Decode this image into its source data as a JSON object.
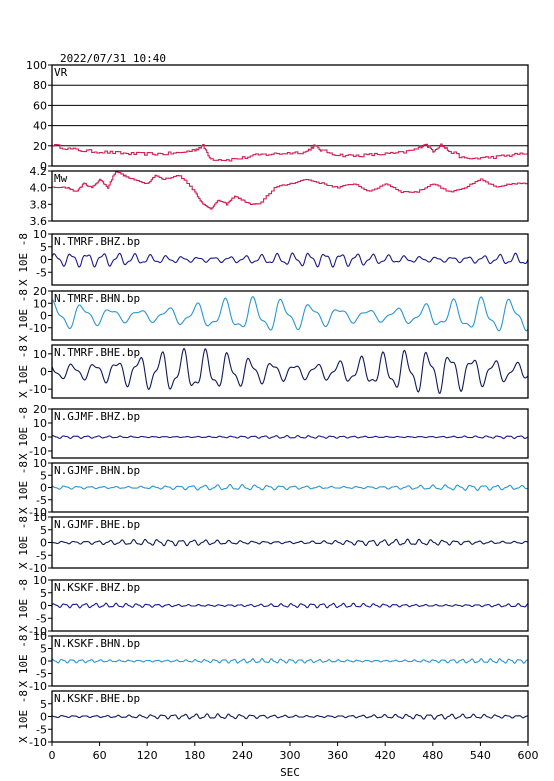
{
  "header": {
    "timestamp": "2022/07/31  10:40"
  },
  "x_axis": {
    "label": "SEC",
    "range": [
      0,
      600
    ],
    "ticks": [
      0,
      60,
      120,
      180,
      240,
      300,
      360,
      420,
      480,
      540,
      600
    ],
    "tick_labels": [
      "0",
      "60",
      "120",
      "180",
      "240",
      "300",
      "360",
      "420",
      "480",
      "540",
      "600"
    ]
  },
  "unit_label": "X 10E -8",
  "colors": {
    "vr": "#d21e50",
    "mw": "#d21e50",
    "bhz": "#1a1a8c",
    "bhn": "#2a96d2",
    "bhe": "#0f1a5a"
  },
  "chart_data": [
    {
      "type": "line",
      "name": "VR",
      "title": "VR",
      "ylim": [
        0,
        100
      ],
      "yticks": [
        0,
        20,
        40,
        60,
        80,
        100
      ],
      "yticklabels": [
        "0",
        "20",
        "40",
        "60",
        "80",
        "100"
      ],
      "grid": true,
      "x": [
        0,
        20,
        40,
        60,
        80,
        100,
        120,
        140,
        160,
        180,
        190,
        200,
        220,
        240,
        260,
        280,
        300,
        320,
        330,
        340,
        360,
        380,
        400,
        420,
        440,
        460,
        470,
        480,
        490,
        500,
        520,
        540,
        560,
        580,
        600
      ],
      "y": [
        21,
        17,
        15,
        14,
        13,
        12,
        12,
        12,
        13,
        16,
        20,
        7,
        6,
        8,
        11,
        12,
        13,
        14,
        20,
        15,
        11,
        10,
        11,
        12,
        13,
        17,
        22,
        15,
        21,
        15,
        7,
        8,
        9,
        11,
        13
      ],
      "color": "#d21e50"
    },
    {
      "type": "line",
      "name": "Mw",
      "title": "Mw",
      "ylim": [
        3.6,
        4.2
      ],
      "yticks": [
        3.6,
        3.8,
        4.0,
        4.2
      ],
      "yticklabels": [
        "3.6",
        "3.8",
        "4.0",
        "4.2"
      ],
      "x": [
        0,
        20,
        30,
        40,
        50,
        60,
        70,
        80,
        90,
        100,
        120,
        130,
        140,
        160,
        180,
        190,
        200,
        210,
        220,
        230,
        240,
        250,
        260,
        280,
        300,
        320,
        340,
        360,
        380,
        400,
        420,
        440,
        460,
        480,
        500,
        520,
        540,
        560,
        580,
        600
      ],
      "y": [
        4.0,
        4.0,
        3.95,
        4.05,
        4.0,
        4.1,
        4.0,
        4.2,
        4.15,
        4.1,
        4.05,
        4.15,
        4.1,
        4.15,
        3.95,
        3.8,
        3.75,
        3.85,
        3.8,
        3.9,
        3.85,
        3.8,
        3.8,
        4.0,
        4.05,
        4.1,
        4.05,
        4.0,
        4.05,
        3.95,
        4.05,
        3.95,
        3.95,
        4.05,
        3.95,
        4.0,
        4.1,
        4.0,
        4.05,
        4.05
      ],
      "color": "#d21e50"
    },
    {
      "type": "line",
      "name": "N.TMRF.BHZ.bp",
      "title": "N.TMRF.BHZ.bp",
      "ylim": [
        -10,
        10
      ],
      "yticks": [
        -5,
        0,
        5,
        10
      ],
      "yticklabels": [
        "-5",
        "0",
        "5",
        "10"
      ],
      "amplitude": 2.5,
      "period": 20,
      "phase": 0.3,
      "color": "#1a1a8c"
    },
    {
      "type": "line",
      "name": "N.TMRF.BHN.bp",
      "title": "N.TMRF.BHN.bp",
      "ylim": [
        -20,
        20
      ],
      "yticks": [
        -10,
        0,
        10,
        20
      ],
      "yticklabels": [
        "-10",
        "0",
        "10",
        "20"
      ],
      "amplitude": 13,
      "period": 36,
      "phase": 1.2,
      "color": "#2a96d2"
    },
    {
      "type": "line",
      "name": "N.TMRF.BHE.bp",
      "title": "N.TMRF.BHE.bp",
      "ylim": [
        -15,
        15
      ],
      "yticks": [
        -10,
        0,
        10
      ],
      "yticklabels": [
        "-10",
        "0",
        "10"
      ],
      "amplitude": 11,
      "period": 28,
      "phase": 2.1,
      "color": "#0f1a5a"
    },
    {
      "type": "line",
      "name": "N.GJMF.BHZ.bp",
      "title": "N.GJMF.BHZ.bp",
      "ylim": [
        -15,
        20
      ],
      "yticks": [
        -10,
        0,
        10,
        20
      ],
      "yticklabels": [
        "-10",
        "0",
        "10",
        "20"
      ],
      "amplitude": 0.9,
      "period": 14,
      "phase": 0.7,
      "color": "#1a1a8c"
    },
    {
      "type": "line",
      "name": "N.GJMF.BHN.bp",
      "title": "N.GJMF.BHN.bp",
      "ylim": [
        -10,
        10
      ],
      "yticks": [
        -10,
        -5,
        0,
        5,
        10
      ],
      "yticklabels": [
        "-10",
        "-5",
        "0",
        "5",
        "10"
      ],
      "amplitude": 1.0,
      "period": 16,
      "phase": 1.5,
      "color": "#2a96d2"
    },
    {
      "type": "line",
      "name": "N.GJMF.BHE.bp",
      "title": "N.GJMF.BHE.bp",
      "ylim": [
        -10,
        10
      ],
      "yticks": [
        -10,
        -5,
        0,
        5,
        10
      ],
      "yticklabels": [
        "-10",
        "-5",
        "0",
        "5",
        "10"
      ],
      "amplitude": 1.1,
      "period": 15,
      "phase": 2.4,
      "color": "#0f1a5a"
    },
    {
      "type": "line",
      "name": "N.KSKF.BHZ.bp",
      "title": "N.KSKF.BHZ.bp",
      "ylim": [
        -10,
        10
      ],
      "yticks": [
        -10,
        -5,
        0,
        5,
        10
      ],
      "yticklabels": [
        "-10",
        "-5",
        "0",
        "5",
        "10"
      ],
      "amplitude": 0.8,
      "period": 13,
      "phase": 0.2,
      "color": "#1a1a8c"
    },
    {
      "type": "line",
      "name": "N.KSKF.BHN.bp",
      "title": "N.KSKF.BHN.bp",
      "ylim": [
        -10,
        10
      ],
      "yticks": [
        -10,
        -5,
        0,
        5,
        10
      ],
      "yticklabels": [
        "-10",
        "-5",
        "0",
        "5",
        "10"
      ],
      "amplitude": 0.8,
      "period": 12,
      "phase": 1.1,
      "color": "#2a96d2"
    },
    {
      "type": "line",
      "name": "N.KSKF.BHE.bp",
      "title": "N.KSKF.BHE.bp",
      "ylim": [
        -10,
        10
      ],
      "yticks": [
        -10,
        -5,
        0,
        5
      ],
      "yticklabels": [
        "-10",
        "-5",
        "0",
        "5"
      ],
      "amplitude": 0.9,
      "period": 14,
      "phase": 1.9,
      "color": "#0f1a5a"
    }
  ]
}
